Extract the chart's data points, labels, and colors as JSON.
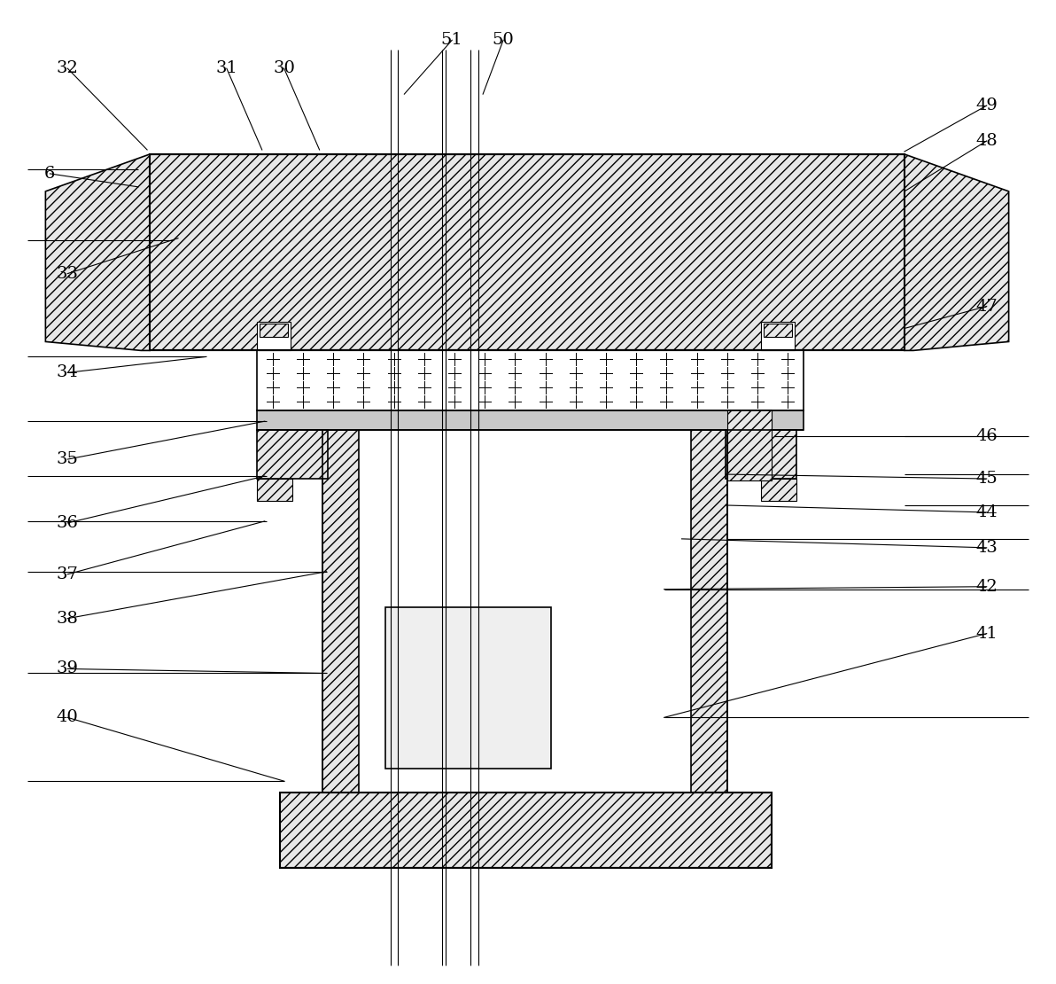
{
  "bg_color": "#ffffff",
  "line_color": "#000000",
  "figsize": [
    11.92,
    11.1
  ],
  "labels": [
    [
      "6",
      55,
      195,
      155,
      210
    ],
    [
      "32",
      75,
      76,
      165,
      168
    ],
    [
      "31",
      255,
      76,
      295,
      168
    ],
    [
      "30",
      320,
      76,
      360,
      168
    ],
    [
      "51",
      510,
      44,
      456,
      105
    ],
    [
      "50",
      568,
      44,
      545,
      105
    ],
    [
      "49",
      1115,
      118,
      1022,
      170
    ],
    [
      "48",
      1115,
      158,
      1022,
      215
    ],
    [
      "47",
      1115,
      345,
      1022,
      370
    ],
    [
      "46",
      1115,
      492,
      875,
      492
    ],
    [
      "45",
      1115,
      540,
      820,
      535
    ],
    [
      "44",
      1115,
      578,
      820,
      570
    ],
    [
      "43",
      1115,
      618,
      770,
      608
    ],
    [
      "42",
      1115,
      662,
      750,
      665
    ],
    [
      "41",
      1115,
      715,
      750,
      810
    ],
    [
      "40",
      75,
      810,
      320,
      882
    ],
    [
      "39",
      75,
      755,
      368,
      760
    ],
    [
      "38",
      75,
      698,
      368,
      645
    ],
    [
      "37",
      75,
      648,
      298,
      588
    ],
    [
      "36",
      75,
      590,
      298,
      537
    ],
    [
      "35",
      75,
      518,
      298,
      475
    ],
    [
      "34",
      75,
      420,
      232,
      402
    ],
    [
      "33",
      75,
      308,
      200,
      268
    ]
  ]
}
